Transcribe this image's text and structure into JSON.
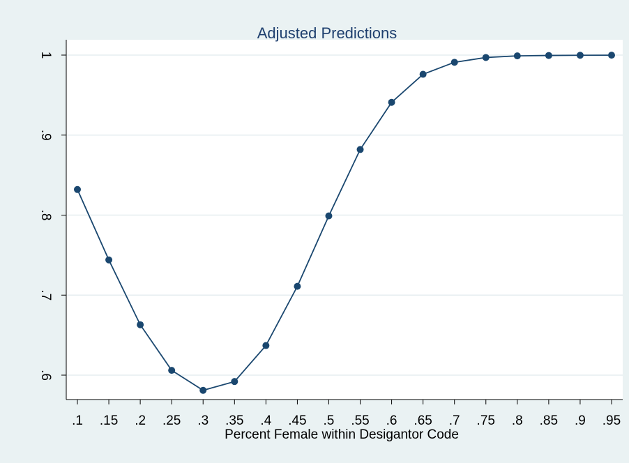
{
  "chart_data": {
    "type": "line",
    "title": "Adjusted Predictions",
    "xlabel": "Percent Female within Desigantor Code",
    "ylabel": "",
    "x": [
      0.1,
      0.15,
      0.2,
      0.25,
      0.3,
      0.35,
      0.4,
      0.45,
      0.5,
      0.55,
      0.6,
      0.65,
      0.7,
      0.75,
      0.8,
      0.85,
      0.9,
      0.95
    ],
    "x_tick_labels": [
      ".1",
      ".15",
      ".2",
      ".25",
      ".3",
      ".35",
      ".4",
      ".45",
      ".5",
      ".55",
      ".6",
      ".65",
      ".7",
      ".75",
      ".8",
      ".85",
      ".9",
      ".95"
    ],
    "series": [
      {
        "values": [
          0.832,
          0.744,
          0.663,
          0.606,
          0.581,
          0.592,
          0.637,
          0.711,
          0.799,
          0.882,
          0.941,
          0.976,
          0.991,
          0.997,
          0.999,
          0.9995,
          0.9998,
          0.9999
        ]
      }
    ],
    "y_ticks": [
      0.6,
      0.7,
      0.8,
      0.9,
      1.0
    ],
    "y_tick_labels": [
      ".6",
      ".7",
      ".8",
      ".9",
      "1"
    ],
    "xlim": [
      0.1,
      0.95
    ],
    "ylim": [
      0.6,
      1.0
    ],
    "grid": true,
    "colors": {
      "background": "#eaf2f3",
      "plot_area": "#ffffff",
      "line": "#1a476f",
      "title": "#1e3f6e",
      "grid": "#e6eef0"
    }
  }
}
